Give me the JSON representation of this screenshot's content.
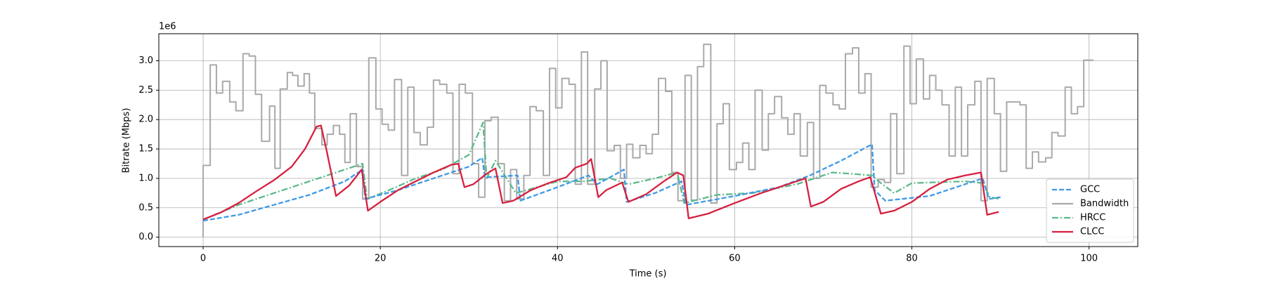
{
  "chart_data": {
    "type": "line",
    "xlabel": "Time (s)",
    "ylabel": "Bitrate (Mbps)",
    "y_offset_label": "1e6",
    "xlim": [
      -5.0,
      105.5
    ],
    "ylim": [
      -0.16,
      3.46
    ],
    "xticks": [
      0,
      20,
      40,
      60,
      80,
      100
    ],
    "yticks": [
      {
        "value": 0,
        "label": "0.0"
      },
      0.5,
      {
        "value": 1,
        "label": "1.0"
      },
      1.5,
      {
        "value": 2,
        "label": "2.0"
      },
      2.5,
      {
        "value": 3,
        "label": "3.0"
      }
    ],
    "grid": true,
    "legend": "lower right",
    "series": [
      {
        "name": "GCC",
        "color": "#3f9ae8",
        "linestyle": "dashed",
        "x": [
          0,
          4,
          8,
          12,
          16,
          18.0,
          18.3,
          22,
          26,
          30,
          31.5,
          31.8,
          35.5,
          35.8,
          40,
          43.5,
          44.5,
          47.5,
          47.8,
          51,
          54.0,
          54.5,
          60,
          65,
          68.5,
          72,
          75.5,
          75.8,
          77,
          82,
          88.0,
          88.7,
          90
        ],
        "values": [
          0.28,
          0.38,
          0.55,
          0.72,
          0.95,
          1.15,
          0.65,
          0.8,
          1.0,
          1.2,
          1.35,
          1.02,
          1.05,
          0.62,
          0.85,
          1.05,
          0.9,
          1.15,
          0.6,
          0.75,
          0.95,
          0.55,
          0.7,
          0.85,
          1.05,
          1.3,
          1.58,
          0.8,
          0.62,
          0.7,
          1.0,
          0.65,
          0.68
        ]
      },
      {
        "name": "Bandwidth",
        "color": "#a9a9a9",
        "linestyle": "solid",
        "step": "post",
        "x": [
          0,
          0,
          0.8,
          1.5,
          2.2,
          3.0,
          3.7,
          4.5,
          5.2,
          5.9,
          6.6,
          7.5,
          8.1,
          8.7,
          9.5,
          10.1,
          10.7,
          11.4,
          12.0,
          12.6,
          13.4,
          14.0,
          14.7,
          15.4,
          16.0,
          16.6,
          17.3,
          18.0,
          18.7,
          19.5,
          20.2,
          20.9,
          21.6,
          22.4,
          23.1,
          23.8,
          24.5,
          25.3,
          26.0,
          26.7,
          27.5,
          28.2,
          28.9,
          29.6,
          30.4,
          31.1,
          31.8,
          32.5,
          33.3,
          34.0,
          34.7,
          35.4,
          36.2,
          36.9,
          37.6,
          38.4,
          39.1,
          39.8,
          40.5,
          41.3,
          42.0,
          42.7,
          43.4,
          44.2,
          44.9,
          45.6,
          46.4,
          47.1,
          47.8,
          48.5,
          49.3,
          50.0,
          50.7,
          51.4,
          52.2,
          52.9,
          53.6,
          54.4,
          55.1,
          55.8,
          56.5,
          57.3,
          58.0,
          58.7,
          59.4,
          60.2,
          60.9,
          61.6,
          62.3,
          63.1,
          63.8,
          64.5,
          65.3,
          66.0,
          66.7,
          67.4,
          68.2,
          68.9,
          69.6,
          70.3,
          71.1,
          71.8,
          72.5,
          73.3,
          74.0,
          74.7,
          75.4,
          76.2,
          76.9,
          77.6,
          78.3,
          79.1,
          79.8,
          80.5,
          81.3,
          82.0,
          82.7,
          83.4,
          84.2,
          84.9,
          85.6,
          86.3,
          87.1,
          87.8,
          88.5,
          89.3,
          90.0,
          90.7,
          91.4,
          92.2,
          92.9,
          93.6,
          94.3,
          95.1,
          95.8,
          96.5,
          97.3,
          98.0,
          98.7,
          99.4,
          100.5
        ],
        "values": [
          0,
          1.22,
          2.93,
          2.45,
          2.65,
          2.3,
          2.15,
          3.12,
          3.08,
          2.43,
          1.63,
          2.23,
          1.17,
          2.52,
          2.8,
          2.75,
          2.57,
          2.78,
          2.45,
          1.85,
          1.57,
          1.75,
          1.9,
          1.75,
          1.27,
          2.1,
          1.2,
          0.65,
          3.05,
          2.18,
          1.92,
          1.82,
          2.68,
          1.05,
          2.55,
          1.78,
          1.57,
          1.87,
          2.67,
          2.6,
          2.45,
          1.08,
          2.6,
          2.45,
          1.25,
          0.68,
          1.98,
          2.04,
          1.25,
          0.62,
          1.15,
          0.65,
          1.05,
          2.22,
          2.15,
          1.05,
          2.87,
          2.2,
          2.7,
          2.6,
          0.9,
          3.15,
          0.9,
          2.52,
          3.0,
          1.47,
          1.56,
          1.0,
          1.58,
          1.35,
          1.56,
          1.42,
          1.75,
          2.7,
          2.48,
          1.1,
          0.62,
          2.75,
          0.63,
          2.9,
          3.28,
          0.58,
          1.93,
          2.27,
          1.15,
          1.27,
          1.6,
          1.15,
          2.5,
          1.48,
          2.1,
          2.39,
          2.03,
          1.75,
          2.1,
          1.38,
          1.95,
          1.0,
          2.58,
          2.45,
          2.25,
          2.18,
          3.12,
          3.22,
          2.45,
          2.78,
          0.85,
          0.98,
          0.93,
          2.1,
          1.08,
          3.25,
          2.27,
          3.03,
          2.35,
          2.75,
          2.5,
          2.25,
          1.38,
          2.55,
          1.38,
          2.25,
          2.65,
          0.62,
          2.7,
          2.1,
          1.12,
          2.3,
          2.3,
          2.25,
          1.17,
          1.45,
          1.28,
          1.35,
          1.78,
          1.72,
          2.55,
          2.1,
          2.22,
          3.01,
          3.01
        ]
      },
      {
        "name": "HRCC",
        "color": "#5cb98a",
        "linestyle": "dashdot",
        "x": [
          0,
          4,
          8,
          11,
          14,
          18.0,
          18.5,
          21,
          24,
          27,
          30,
          31.6,
          32.0,
          33.0,
          35.3,
          37,
          40,
          43,
          46,
          48,
          51,
          53.5,
          54.3,
          58,
          62,
          67,
          71,
          73,
          75.5,
          76.5,
          78,
          80,
          86,
          88.0,
          88.8,
          90
        ],
        "values": [
          0.3,
          0.55,
          0.75,
          0.9,
          1.05,
          1.25,
          0.65,
          0.8,
          1.0,
          1.15,
          1.4,
          1.95,
          1.0,
          1.3,
          0.75,
          0.82,
          0.95,
          0.95,
          1.0,
          0.9,
          1.0,
          1.1,
          0.58,
          0.72,
          0.75,
          0.9,
          1.1,
          1.08,
          1.05,
          0.92,
          0.75,
          0.92,
          0.95,
          0.92,
          0.68,
          0.65
        ]
      },
      {
        "name": "CLCC",
        "color": "#d6203f",
        "linestyle": "solid",
        "x": [
          0,
          2,
          4,
          6,
          8,
          10,
          11.5,
          12.8,
          13.3,
          13.9,
          15,
          16.5,
          17.9,
          18.6,
          20,
          22,
          24,
          26,
          28,
          28.8,
          29.5,
          30.5,
          32,
          33.0,
          33.8,
          35,
          37,
          39,
          41,
          42,
          43.3,
          43.8,
          44.6,
          45.5,
          47.3,
          48.0,
          50,
          52,
          53.5,
          54.2,
          54.8,
          57,
          60,
          63,
          65,
          67,
          68.0,
          68.6,
          70,
          72,
          74,
          75.3,
          76.5,
          78,
          80,
          82,
          84,
          86,
          87.8,
          88.5,
          89.8
        ],
        "values": [
          0.3,
          0.42,
          0.58,
          0.78,
          0.97,
          1.2,
          1.5,
          1.88,
          1.9,
          1.5,
          0.7,
          0.88,
          1.15,
          0.45,
          0.6,
          0.8,
          0.95,
          1.1,
          1.23,
          1.25,
          0.85,
          0.9,
          1.08,
          1.17,
          0.58,
          0.62,
          0.8,
          0.92,
          1.02,
          1.18,
          1.25,
          1.33,
          0.68,
          0.8,
          0.93,
          0.6,
          0.73,
          0.95,
          1.1,
          1.05,
          0.32,
          0.4,
          0.58,
          0.75,
          0.85,
          0.95,
          1.0,
          0.52,
          0.6,
          0.82,
          0.95,
          1.02,
          0.4,
          0.45,
          0.6,
          0.82,
          0.98,
          1.05,
          1.1,
          0.38,
          0.43
        ]
      }
    ]
  }
}
